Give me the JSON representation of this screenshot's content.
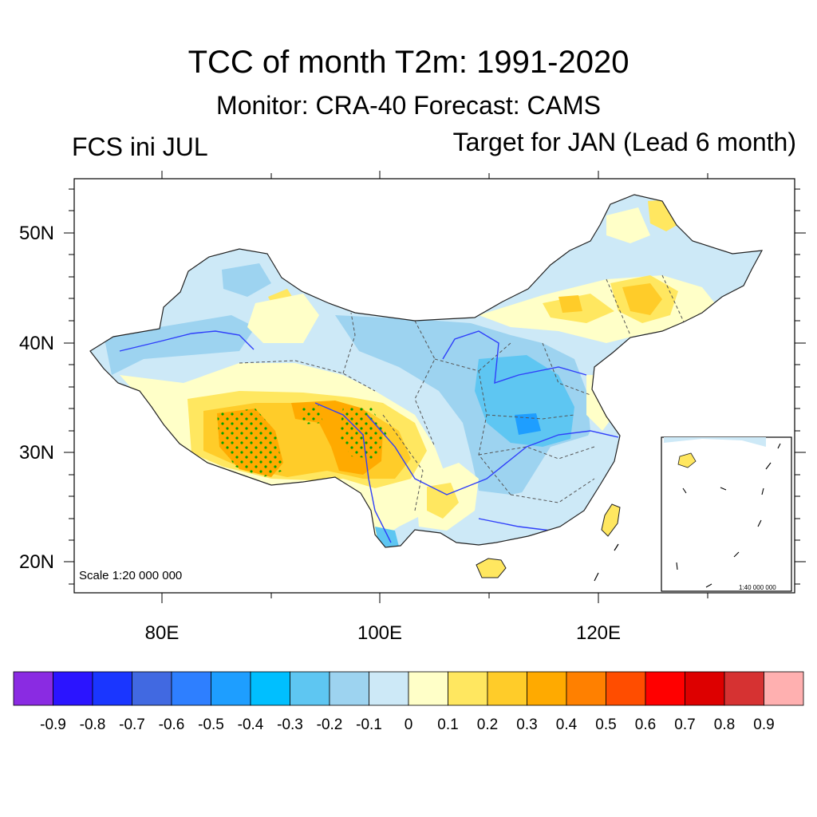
{
  "header": {
    "title": "TCC of month T2m: 1991-2020",
    "subtitle": "Monitor: CRA-40   Forecast: CAMS",
    "left_label": "FCS ini JUL",
    "right_label": "Target for JAN (Lead 6 month)"
  },
  "map": {
    "lat_labels": [
      "50N",
      "40N",
      "30N",
      "20N"
    ],
    "lon_labels": [
      "80E",
      "100E",
      "120E"
    ],
    "scale_text": "Scale 1:20 000 000",
    "inset_scale_text": "1:40 000 000"
  },
  "colorbar": {
    "colors": [
      "#8a2be2",
      "#2b14ff",
      "#1a36ff",
      "#4169e1",
      "#2e7fff",
      "#1e9eff",
      "#00bfff",
      "#5ec6f2",
      "#9dd3f0",
      "#cde9f7",
      "#ffffc8",
      "#ffe760",
      "#ffcc29",
      "#ffaa00",
      "#ff8000",
      "#ff4d00",
      "#ff0000",
      "#dd0000",
      "#d63232",
      "#ffb0b0"
    ],
    "labels": [
      "-0.9",
      "-0.8",
      "-0.7",
      "-0.6",
      "-0.5",
      "-0.4",
      "-0.3",
      "-0.2",
      "-0.1",
      "0",
      "0.1",
      "0.2",
      "0.3",
      "0.4",
      "0.5",
      "0.6",
      "0.7",
      "0.8",
      "0.9"
    ]
  }
}
